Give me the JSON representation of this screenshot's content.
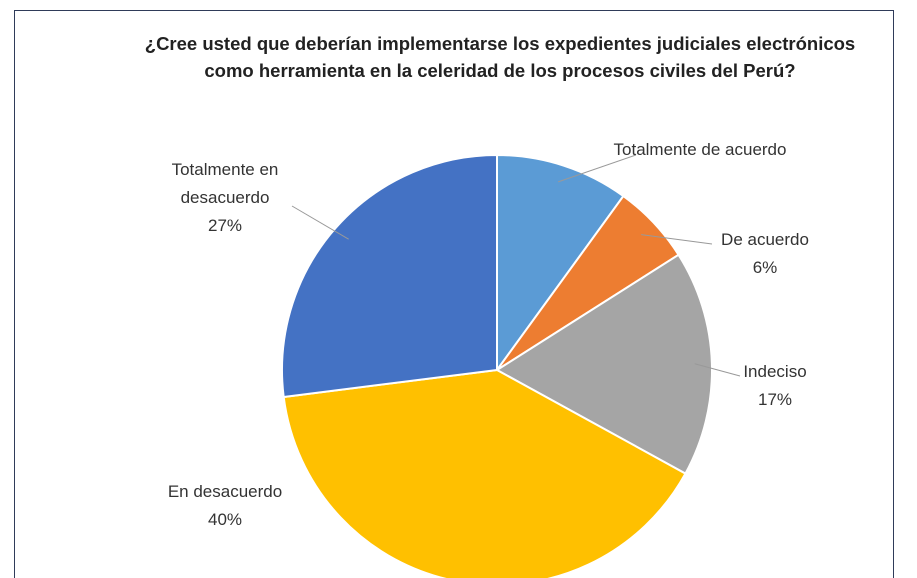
{
  "chart_data": {
    "type": "pie",
    "title": "¿Cree usted que deberían implementarse los expedientes judiciales electrónicos como herramienta en la celeridad de los procesos civiles del Perú?",
    "categories": [
      "Totalmente de acuerdo",
      "De acuerdo",
      "Indeciso",
      "En desacuerdo",
      "Totalmente en desacuerdo"
    ],
    "values": [
      10,
      6,
      17,
      40,
      27
    ],
    "value_labels": [
      null,
      "6%",
      "17%",
      "40%",
      "27%"
    ],
    "colors": [
      "#5b9bd5",
      "#ed7d31",
      "#a5a5a5",
      "#ffc000",
      "#4472c4"
    ]
  }
}
